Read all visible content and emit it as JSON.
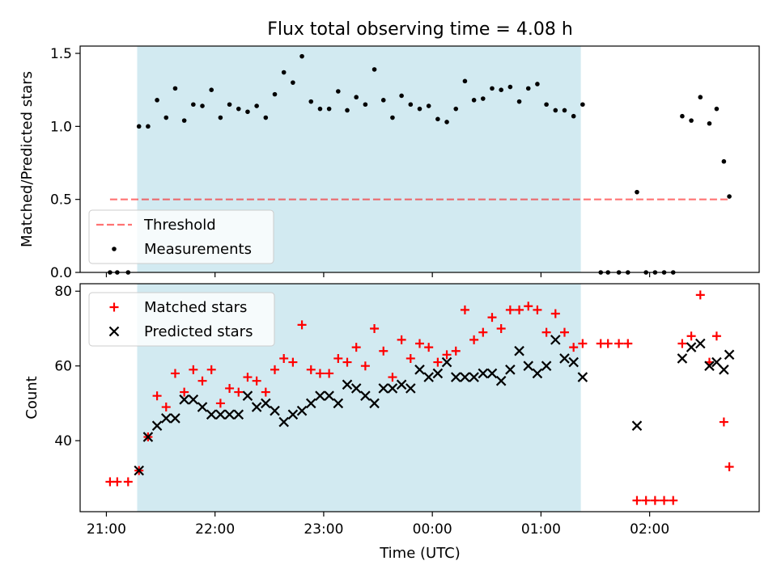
{
  "title": "Flux total observing time = 4.08 h",
  "colors": {
    "span": "#add8e6",
    "threshold": "#ff0000",
    "measurements": "#000000",
    "matched": "#ff0000",
    "predicted": "#000000"
  },
  "chart_data": [
    {
      "type": "scatter",
      "ylabel": "Matched/Predicted stars",
      "ylim": [
        0,
        1.55
      ],
      "yticks": [
        "0.0",
        "0.5",
        "1.0",
        "1.5"
      ],
      "shaded_span": {
        "start": "21:17",
        "end": "01:22"
      },
      "legend": {
        "placement": "lower-left",
        "entries": [
          {
            "label": "Threshold",
            "style": "dashed-line"
          },
          {
            "label": "Measurements",
            "style": "dot"
          }
        ]
      },
      "threshold": {
        "name": "Threshold",
        "value": 0.5,
        "x_range": [
          "21:02",
          "02:44"
        ]
      },
      "series": [
        {
          "name": "Measurements",
          "marker": "dot",
          "points": [
            [
              "21:02",
              0.0
            ],
            [
              "21:06",
              0.0
            ],
            [
              "21:12",
              0.0
            ],
            [
              "21:18",
              1.0
            ],
            [
              "21:23",
              1.0
            ],
            [
              "21:28",
              1.18
            ],
            [
              "21:33",
              1.06
            ],
            [
              "21:38",
              1.26
            ],
            [
              "21:43",
              1.04
            ],
            [
              "21:48",
              1.15
            ],
            [
              "21:53",
              1.14
            ],
            [
              "21:58",
              1.25
            ],
            [
              "22:03",
              1.06
            ],
            [
              "22:08",
              1.15
            ],
            [
              "22:13",
              1.12
            ],
            [
              "22:18",
              1.1
            ],
            [
              "22:23",
              1.14
            ],
            [
              "22:28",
              1.06
            ],
            [
              "22:33",
              1.22
            ],
            [
              "22:38",
              1.37
            ],
            [
              "22:43",
              1.3
            ],
            [
              "22:48",
              1.48
            ],
            [
              "22:53",
              1.17
            ],
            [
              "22:58",
              1.12
            ],
            [
              "23:03",
              1.12
            ],
            [
              "23:08",
              1.24
            ],
            [
              "23:13",
              1.11
            ],
            [
              "23:18",
              1.2
            ],
            [
              "23:23",
              1.15
            ],
            [
              "23:28",
              1.39
            ],
            [
              "23:33",
              1.18
            ],
            [
              "23:38",
              1.06
            ],
            [
              "23:43",
              1.21
            ],
            [
              "23:48",
              1.15
            ],
            [
              "23:53",
              1.12
            ],
            [
              "23:58",
              1.14
            ],
            [
              "00:03",
              1.05
            ],
            [
              "00:08",
              1.03
            ],
            [
              "00:13",
              1.12
            ],
            [
              "00:18",
              1.31
            ],
            [
              "00:23",
              1.18
            ],
            [
              "00:28",
              1.19
            ],
            [
              "00:33",
              1.26
            ],
            [
              "00:38",
              1.25
            ],
            [
              "00:43",
              1.27
            ],
            [
              "00:48",
              1.17
            ],
            [
              "00:53",
              1.26
            ],
            [
              "00:58",
              1.29
            ],
            [
              "01:03",
              1.15
            ],
            [
              "01:08",
              1.11
            ],
            [
              "01:13",
              1.11
            ],
            [
              "01:18",
              1.07
            ],
            [
              "01:23",
              1.15
            ],
            [
              "01:33",
              0.0
            ],
            [
              "01:37",
              0.0
            ],
            [
              "01:43",
              0.0
            ],
            [
              "01:48",
              0.0
            ],
            [
              "01:53",
              0.55
            ],
            [
              "01:58",
              0.0
            ],
            [
              "02:03",
              0.0
            ],
            [
              "02:08",
              0.0
            ],
            [
              "02:13",
              0.0
            ],
            [
              "02:18",
              1.07
            ],
            [
              "02:23",
              1.04
            ],
            [
              "02:28",
              1.2
            ],
            [
              "02:33",
              1.02
            ],
            [
              "02:37",
              1.12
            ],
            [
              "02:41",
              0.76
            ],
            [
              "02:44",
              0.52
            ]
          ]
        }
      ]
    },
    {
      "type": "scatter",
      "xlabel": "Time (UTC)",
      "ylabel": "Count",
      "ylim": [
        21,
        82
      ],
      "yticks": [
        "40",
        "60",
        "80"
      ],
      "xticks": [
        "21:00",
        "22:00",
        "23:00",
        "00:00",
        "01:00",
        "02:00"
      ],
      "shaded_span": {
        "start": "21:17",
        "end": "01:22"
      },
      "legend": {
        "placement": "upper-left",
        "entries": [
          {
            "label": "Matched stars",
            "style": "plus"
          },
          {
            "label": "Predicted stars",
            "style": "x"
          }
        ]
      },
      "series": [
        {
          "name": "Matched stars",
          "marker": "plus",
          "points": [
            [
              "21:02",
              29
            ],
            [
              "21:06",
              29
            ],
            [
              "21:12",
              29
            ],
            [
              "21:18",
              32
            ],
            [
              "21:23",
              41
            ],
            [
              "21:28",
              52
            ],
            [
              "21:33",
              49
            ],
            [
              "21:38",
              58
            ],
            [
              "21:43",
              53
            ],
            [
              "21:48",
              59
            ],
            [
              "21:53",
              56
            ],
            [
              "21:58",
              59
            ],
            [
              "22:03",
              50
            ],
            [
              "22:08",
              54
            ],
            [
              "22:13",
              53
            ],
            [
              "22:18",
              57
            ],
            [
              "22:23",
              56
            ],
            [
              "22:28",
              53
            ],
            [
              "22:33",
              59
            ],
            [
              "22:38",
              62
            ],
            [
              "22:43",
              61
            ],
            [
              "22:48",
              71
            ],
            [
              "22:53",
              59
            ],
            [
              "22:58",
              58
            ],
            [
              "23:03",
              58
            ],
            [
              "23:08",
              62
            ],
            [
              "23:13",
              61
            ],
            [
              "23:18",
              65
            ],
            [
              "23:23",
              60
            ],
            [
              "23:28",
              70
            ],
            [
              "23:33",
              64
            ],
            [
              "23:38",
              57
            ],
            [
              "23:43",
              67
            ],
            [
              "23:48",
              62
            ],
            [
              "23:53",
              66
            ],
            [
              "23:58",
              65
            ],
            [
              "00:03",
              61
            ],
            [
              "00:08",
              63
            ],
            [
              "00:13",
              64
            ],
            [
              "00:18",
              75
            ],
            [
              "00:23",
              67
            ],
            [
              "00:28",
              69
            ],
            [
              "00:33",
              73
            ],
            [
              "00:38",
              70
            ],
            [
              "00:43",
              75
            ],
            [
              "00:48",
              75
            ],
            [
              "00:53",
              76
            ],
            [
              "00:58",
              75
            ],
            [
              "01:03",
              69
            ],
            [
              "01:08",
              74
            ],
            [
              "01:13",
              69
            ],
            [
              "01:18",
              65
            ],
            [
              "01:23",
              66
            ],
            [
              "01:33",
              66
            ],
            [
              "01:37",
              66
            ],
            [
              "01:43",
              66
            ],
            [
              "01:48",
              66
            ],
            [
              "01:53",
              24
            ],
            [
              "01:58",
              24
            ],
            [
              "02:03",
              24
            ],
            [
              "02:08",
              24
            ],
            [
              "02:13",
              24
            ],
            [
              "02:18",
              66
            ],
            [
              "02:23",
              68
            ],
            [
              "02:28",
              79
            ],
            [
              "02:33",
              61
            ],
            [
              "02:37",
              68
            ],
            [
              "02:41",
              45
            ],
            [
              "02:44",
              33
            ]
          ]
        },
        {
          "name": "Predicted stars",
          "marker": "x",
          "points": [
            [
              "21:18",
              32
            ],
            [
              "21:23",
              41
            ],
            [
              "21:28",
              44
            ],
            [
              "21:33",
              46
            ],
            [
              "21:38",
              46
            ],
            [
              "21:43",
              51
            ],
            [
              "21:48",
              51
            ],
            [
              "21:53",
              49
            ],
            [
              "21:58",
              47
            ],
            [
              "22:03",
              47
            ],
            [
              "22:08",
              47
            ],
            [
              "22:13",
              47
            ],
            [
              "22:18",
              52
            ],
            [
              "22:23",
              49
            ],
            [
              "22:28",
              50
            ],
            [
              "22:33",
              48
            ],
            [
              "22:38",
              45
            ],
            [
              "22:43",
              47
            ],
            [
              "22:48",
              48
            ],
            [
              "22:53",
              50
            ],
            [
              "22:58",
              52
            ],
            [
              "23:03",
              52
            ],
            [
              "23:08",
              50
            ],
            [
              "23:13",
              55
            ],
            [
              "23:18",
              54
            ],
            [
              "23:23",
              52
            ],
            [
              "23:28",
              50
            ],
            [
              "23:33",
              54
            ],
            [
              "23:38",
              54
            ],
            [
              "23:43",
              55
            ],
            [
              "23:48",
              54
            ],
            [
              "23:53",
              59
            ],
            [
              "23:58",
              57
            ],
            [
              "00:03",
              58
            ],
            [
              "00:08",
              61
            ],
            [
              "00:13",
              57
            ],
            [
              "00:18",
              57
            ],
            [
              "00:23",
              57
            ],
            [
              "00:28",
              58
            ],
            [
              "00:33",
              58
            ],
            [
              "00:38",
              56
            ],
            [
              "00:43",
              59
            ],
            [
              "00:48",
              64
            ],
            [
              "00:53",
              60
            ],
            [
              "00:58",
              58
            ],
            [
              "01:03",
              60
            ],
            [
              "01:08",
              67
            ],
            [
              "01:13",
              62
            ],
            [
              "01:18",
              61
            ],
            [
              "01:23",
              57
            ],
            [
              "01:53",
              44
            ],
            [
              "02:18",
              62
            ],
            [
              "02:23",
              65
            ],
            [
              "02:28",
              66
            ],
            [
              "02:33",
              60
            ],
            [
              "02:37",
              61
            ],
            [
              "02:41",
              59
            ],
            [
              "02:44",
              63
            ]
          ]
        }
      ]
    }
  ]
}
